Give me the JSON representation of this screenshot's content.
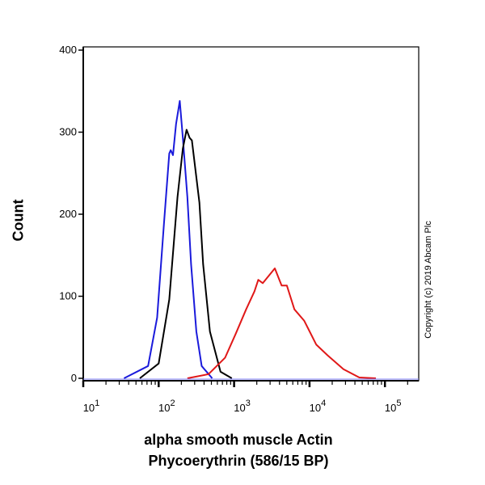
{
  "chart_data": {
    "type": "line",
    "title": "",
    "xlabel_line1": "alpha smooth muscle Actin",
    "xlabel_line2": "Phycoerythrin (586/15 BP)",
    "ylabel": "Count",
    "xscale": "log10",
    "xlim_log10": [
      1,
      5.44
    ],
    "ylim": [
      0,
      405
    ],
    "yticks": [
      "0",
      "100",
      "200",
      "300",
      "400"
    ],
    "xticks": [
      {
        "base": "10",
        "exp": "1"
      },
      {
        "base": "10",
        "exp": "2"
      },
      {
        "base": "10",
        "exp": "3"
      },
      {
        "base": "10",
        "exp": "4"
      },
      {
        "base": "10",
        "exp": "5"
      }
    ],
    "grid": false,
    "series": [
      {
        "name": "blue",
        "color": "#1a1adb",
        "x_log10": [
          1.54,
          1.86,
          1.98,
          2.07,
          2.14,
          2.16,
          2.19,
          2.23,
          2.28,
          2.32,
          2.38,
          2.43,
          2.5,
          2.57,
          2.71
        ],
        "y": [
          0,
          15,
          74,
          188,
          274,
          278,
          272,
          310,
          338,
          293,
          221,
          139,
          57,
          15,
          0
        ]
      },
      {
        "name": "black",
        "color": "#000000",
        "x_log10": [
          1.75,
          2.0,
          2.14,
          2.25,
          2.32,
          2.37,
          2.41,
          2.44,
          2.54,
          2.59,
          2.68,
          2.82,
          2.97
        ],
        "y": [
          0,
          18,
          96,
          221,
          280,
          303,
          293,
          290,
          214,
          139,
          57,
          8,
          0
        ]
      },
      {
        "name": "red",
        "color": "#e01818",
        "x_log10": [
          2.38,
          2.66,
          2.88,
          3.02,
          3.16,
          3.27,
          3.32,
          3.38,
          3.54,
          3.63,
          3.7,
          3.8,
          3.93,
          4.09,
          4.24,
          4.45,
          4.66,
          4.88
        ],
        "y": [
          0,
          5,
          25,
          54,
          84,
          106,
          120,
          116,
          134,
          113,
          113,
          84,
          70,
          41,
          28,
          11,
          1,
          0
        ]
      }
    ]
  },
  "copyright": "Copyright (c) 2019 Abcam Plc"
}
